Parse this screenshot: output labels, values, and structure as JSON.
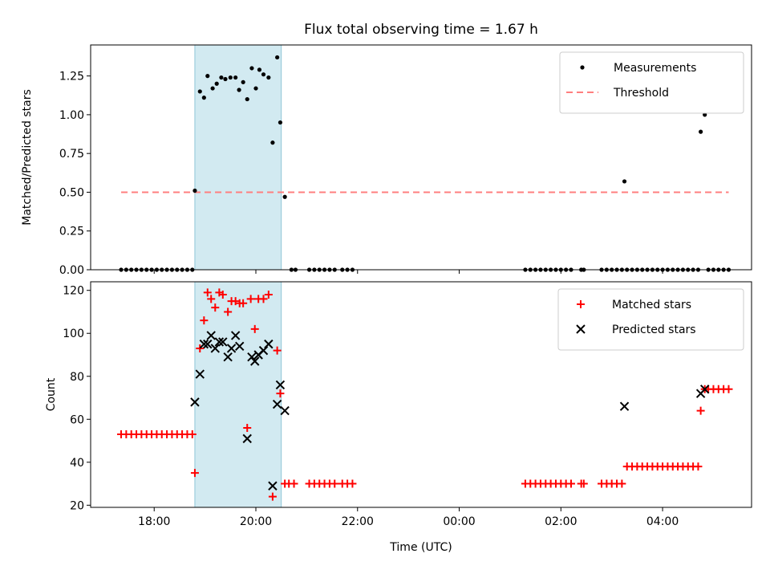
{
  "colors": {
    "measurement": "#000000",
    "threshold": "#ff7f7f",
    "matched": "#ff0000",
    "predicted": "#000000",
    "shade": "#add8e6"
  },
  "chart_data": [
    {
      "type": "scatter",
      "title": "Flux total observing time = 1.67 h",
      "xlabel": "",
      "ylabel": "Matched/Predicted stars",
      "x_unit": "hours since 00:00 UTC of the first night (values > 24 are after midnight)",
      "xlim": [
        16.75,
        29.75
      ],
      "ylim": [
        0,
        1.45
      ],
      "yticks": [
        "0.00",
        "0.25",
        "0.50",
        "0.75",
        "1.00",
        "1.25"
      ],
      "xticks": [
        "18:00",
        "20:00",
        "22:00",
        "00:00",
        "02:00",
        "04:00"
      ],
      "shaded_span": [
        18.8,
        20.5
      ],
      "legend_position": "upper right",
      "threshold": {
        "name": "Threshold",
        "y": 0.5,
        "x_range": [
          17.35,
          29.3
        ]
      },
      "series": [
        {
          "name": "Measurements",
          "points": [
            [
              17.35,
              0
            ],
            [
              17.45,
              0
            ],
            [
              17.55,
              0
            ],
            [
              17.65,
              0
            ],
            [
              17.75,
              0
            ],
            [
              17.85,
              0
            ],
            [
              17.95,
              0
            ],
            [
              18.05,
              0
            ],
            [
              18.15,
              0
            ],
            [
              18.25,
              0
            ],
            [
              18.35,
              0
            ],
            [
              18.45,
              0
            ],
            [
              18.55,
              0
            ],
            [
              18.65,
              0
            ],
            [
              18.75,
              0
            ],
            [
              18.8,
              0.51
            ],
            [
              18.9,
              1.15
            ],
            [
              18.98,
              1.11
            ],
            [
              19.05,
              1.25
            ],
            [
              19.15,
              1.17
            ],
            [
              19.23,
              1.2
            ],
            [
              19.32,
              1.24
            ],
            [
              19.4,
              1.23
            ],
            [
              19.5,
              1.24
            ],
            [
              19.6,
              1.24
            ],
            [
              19.67,
              1.16
            ],
            [
              19.75,
              1.21
            ],
            [
              19.83,
              1.1
            ],
            [
              19.92,
              1.3
            ],
            [
              20.0,
              1.17
            ],
            [
              20.07,
              1.29
            ],
            [
              20.15,
              1.26
            ],
            [
              20.25,
              1.24
            ],
            [
              20.33,
              0.82
            ],
            [
              20.42,
              1.37
            ],
            [
              20.48,
              0.95
            ],
            [
              20.57,
              0.47
            ],
            [
              20.7,
              0
            ],
            [
              20.78,
              0
            ],
            [
              21.05,
              0
            ],
            [
              21.15,
              0
            ],
            [
              21.25,
              0
            ],
            [
              21.35,
              0
            ],
            [
              21.45,
              0
            ],
            [
              21.55,
              0
            ],
            [
              21.7,
              0
            ],
            [
              21.8,
              0
            ],
            [
              21.9,
              0
            ],
            [
              25.3,
              0
            ],
            [
              25.4,
              0
            ],
            [
              25.5,
              0
            ],
            [
              25.6,
              0
            ],
            [
              25.7,
              0
            ],
            [
              25.8,
              0
            ],
            [
              25.9,
              0
            ],
            [
              26.0,
              0
            ],
            [
              26.1,
              0
            ],
            [
              26.2,
              0
            ],
            [
              26.4,
              0
            ],
            [
              26.45,
              0
            ],
            [
              26.8,
              0
            ],
            [
              26.9,
              0
            ],
            [
              27.0,
              0
            ],
            [
              27.1,
              0
            ],
            [
              27.2,
              0
            ],
            [
              27.25,
              0.57
            ],
            [
              27.3,
              0
            ],
            [
              27.4,
              0
            ],
            [
              27.5,
              0
            ],
            [
              27.6,
              0
            ],
            [
              27.7,
              0
            ],
            [
              27.8,
              0
            ],
            [
              27.9,
              0
            ],
            [
              28.0,
              0
            ],
            [
              28.1,
              0
            ],
            [
              28.2,
              0
            ],
            [
              28.3,
              0
            ],
            [
              28.4,
              0
            ],
            [
              28.5,
              0
            ],
            [
              28.6,
              0
            ],
            [
              28.7,
              0
            ],
            [
              28.75,
              0.89
            ],
            [
              28.83,
              1.0
            ],
            [
              28.9,
              0
            ],
            [
              29.0,
              0
            ],
            [
              29.1,
              0
            ],
            [
              29.2,
              0
            ],
            [
              29.3,
              0
            ]
          ]
        }
      ]
    },
    {
      "type": "scatter",
      "title": "",
      "xlabel": "Time (UTC)",
      "ylabel": "Count",
      "x_unit": "hours since 00:00 UTC of the first night (values > 24 are after midnight)",
      "xlim": [
        16.75,
        29.75
      ],
      "ylim": [
        19,
        124
      ],
      "yticks": [
        "20",
        "40",
        "60",
        "80",
        "100",
        "120"
      ],
      "xticks": [
        "18:00",
        "20:00",
        "22:00",
        "00:00",
        "02:00",
        "04:00"
      ],
      "shaded_span": [
        18.8,
        20.5
      ],
      "legend_position": "upper right",
      "series": [
        {
          "name": "Matched stars",
          "marker": "plus",
          "points": [
            [
              17.35,
              53
            ],
            [
              17.45,
              53
            ],
            [
              17.55,
              53
            ],
            [
              17.65,
              53
            ],
            [
              17.75,
              53
            ],
            [
              17.85,
              53
            ],
            [
              17.95,
              53
            ],
            [
              18.05,
              53
            ],
            [
              18.15,
              53
            ],
            [
              18.25,
              53
            ],
            [
              18.35,
              53
            ],
            [
              18.45,
              53
            ],
            [
              18.55,
              53
            ],
            [
              18.65,
              53
            ],
            [
              18.75,
              53
            ],
            [
              18.8,
              35
            ],
            [
              18.9,
              93
            ],
            [
              18.98,
              106
            ],
            [
              19.05,
              119
            ],
            [
              19.12,
              116
            ],
            [
              19.2,
              112
            ],
            [
              19.28,
              119
            ],
            [
              19.35,
              118
            ],
            [
              19.45,
              110
            ],
            [
              19.52,
              115
            ],
            [
              19.6,
              115
            ],
            [
              19.68,
              114
            ],
            [
              19.75,
              114
            ],
            [
              19.83,
              56
            ],
            [
              19.9,
              116
            ],
            [
              19.98,
              102
            ],
            [
              20.05,
              116
            ],
            [
              20.15,
              116
            ],
            [
              20.25,
              118
            ],
            [
              20.33,
              24
            ],
            [
              20.42,
              92
            ],
            [
              20.48,
              72
            ],
            [
              20.57,
              30
            ],
            [
              20.65,
              30
            ],
            [
              20.75,
              30
            ],
            [
              21.05,
              30
            ],
            [
              21.15,
              30
            ],
            [
              21.25,
              30
            ],
            [
              21.35,
              30
            ],
            [
              21.45,
              30
            ],
            [
              21.55,
              30
            ],
            [
              21.7,
              30
            ],
            [
              21.8,
              30
            ],
            [
              21.9,
              30
            ],
            [
              25.3,
              30
            ],
            [
              25.4,
              30
            ],
            [
              25.5,
              30
            ],
            [
              25.6,
              30
            ],
            [
              25.7,
              30
            ],
            [
              25.8,
              30
            ],
            [
              25.9,
              30
            ],
            [
              26.0,
              30
            ],
            [
              26.1,
              30
            ],
            [
              26.2,
              30
            ],
            [
              26.4,
              30
            ],
            [
              26.45,
              30
            ],
            [
              26.8,
              30
            ],
            [
              26.9,
              30
            ],
            [
              27.0,
              30
            ],
            [
              27.1,
              30
            ],
            [
              27.2,
              30
            ],
            [
              27.3,
              38
            ],
            [
              27.4,
              38
            ],
            [
              27.5,
              38
            ],
            [
              27.6,
              38
            ],
            [
              27.7,
              38
            ],
            [
              27.8,
              38
            ],
            [
              27.9,
              38
            ],
            [
              28.0,
              38
            ],
            [
              28.1,
              38
            ],
            [
              28.2,
              38
            ],
            [
              28.3,
              38
            ],
            [
              28.4,
              38
            ],
            [
              28.5,
              38
            ],
            [
              28.6,
              38
            ],
            [
              28.7,
              38
            ],
            [
              28.75,
              64
            ],
            [
              28.83,
              74
            ],
            [
              28.9,
              74
            ],
            [
              29.0,
              74
            ],
            [
              29.1,
              74
            ],
            [
              29.2,
              74
            ],
            [
              29.3,
              74
            ]
          ]
        },
        {
          "name": "Predicted stars",
          "marker": "x",
          "points": [
            [
              18.8,
              68
            ],
            [
              18.9,
              81
            ],
            [
              18.98,
              95
            ],
            [
              19.05,
              95
            ],
            [
              19.12,
              99
            ],
            [
              19.2,
              93
            ],
            [
              19.28,
              96
            ],
            [
              19.35,
              96
            ],
            [
              19.45,
              89
            ],
            [
              19.52,
              93
            ],
            [
              19.6,
              99
            ],
            [
              19.68,
              94
            ],
            [
              19.83,
              51
            ],
            [
              19.92,
              89
            ],
            [
              19.98,
              87
            ],
            [
              20.05,
              90
            ],
            [
              20.15,
              92
            ],
            [
              20.25,
              95
            ],
            [
              20.33,
              29
            ],
            [
              20.42,
              67
            ],
            [
              20.48,
              76
            ],
            [
              20.57,
              64
            ],
            [
              27.25,
              66
            ],
            [
              28.75,
              72
            ],
            [
              28.83,
              74
            ]
          ]
        }
      ]
    }
  ]
}
